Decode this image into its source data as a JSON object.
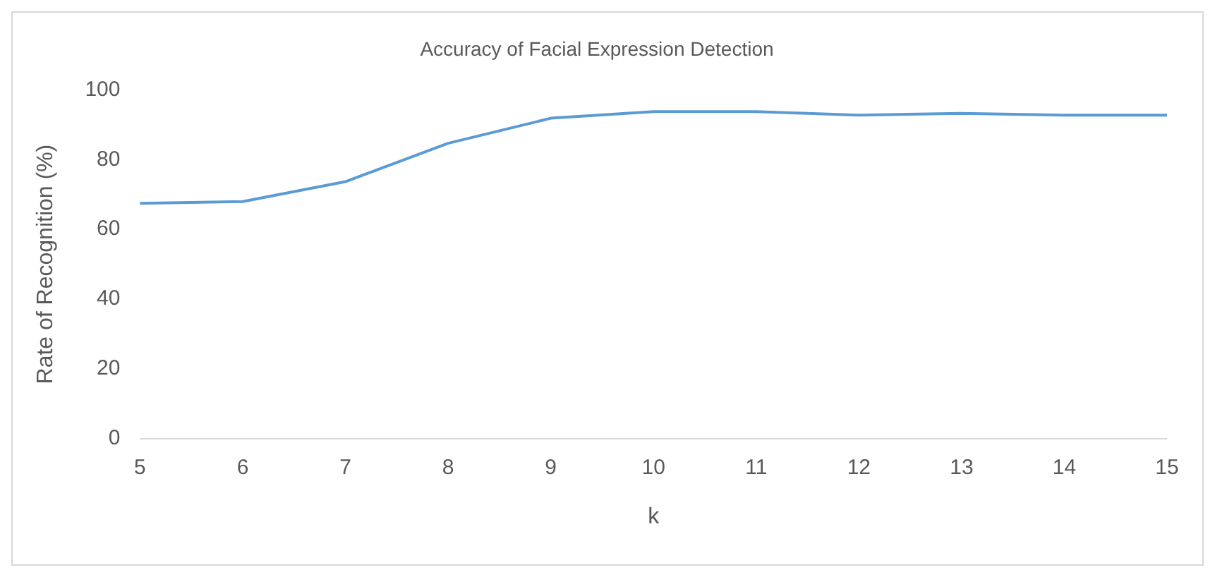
{
  "chart_data": {
    "type": "line",
    "title": "Accuracy of Facial Expression Detection",
    "xlabel": "k",
    "ylabel": "Rate of Recognition (%)",
    "categories": [
      "5",
      "6",
      "7",
      "8",
      "9",
      "10",
      "11",
      "12",
      "13",
      "14",
      "15"
    ],
    "series": [
      {
        "color": "#5b9bd5",
        "values": [
          67.5,
          68,
          73.7,
          84.7,
          91.9,
          93.8,
          93.8,
          92.8,
          93.3,
          92.8,
          92.8
        ]
      }
    ],
    "ylim": [
      0,
      100
    ],
    "yticks": [
      0,
      20,
      40,
      60,
      80,
      100
    ],
    "grid": false,
    "legend": false,
    "marker": "none",
    "line_style": "solid"
  }
}
